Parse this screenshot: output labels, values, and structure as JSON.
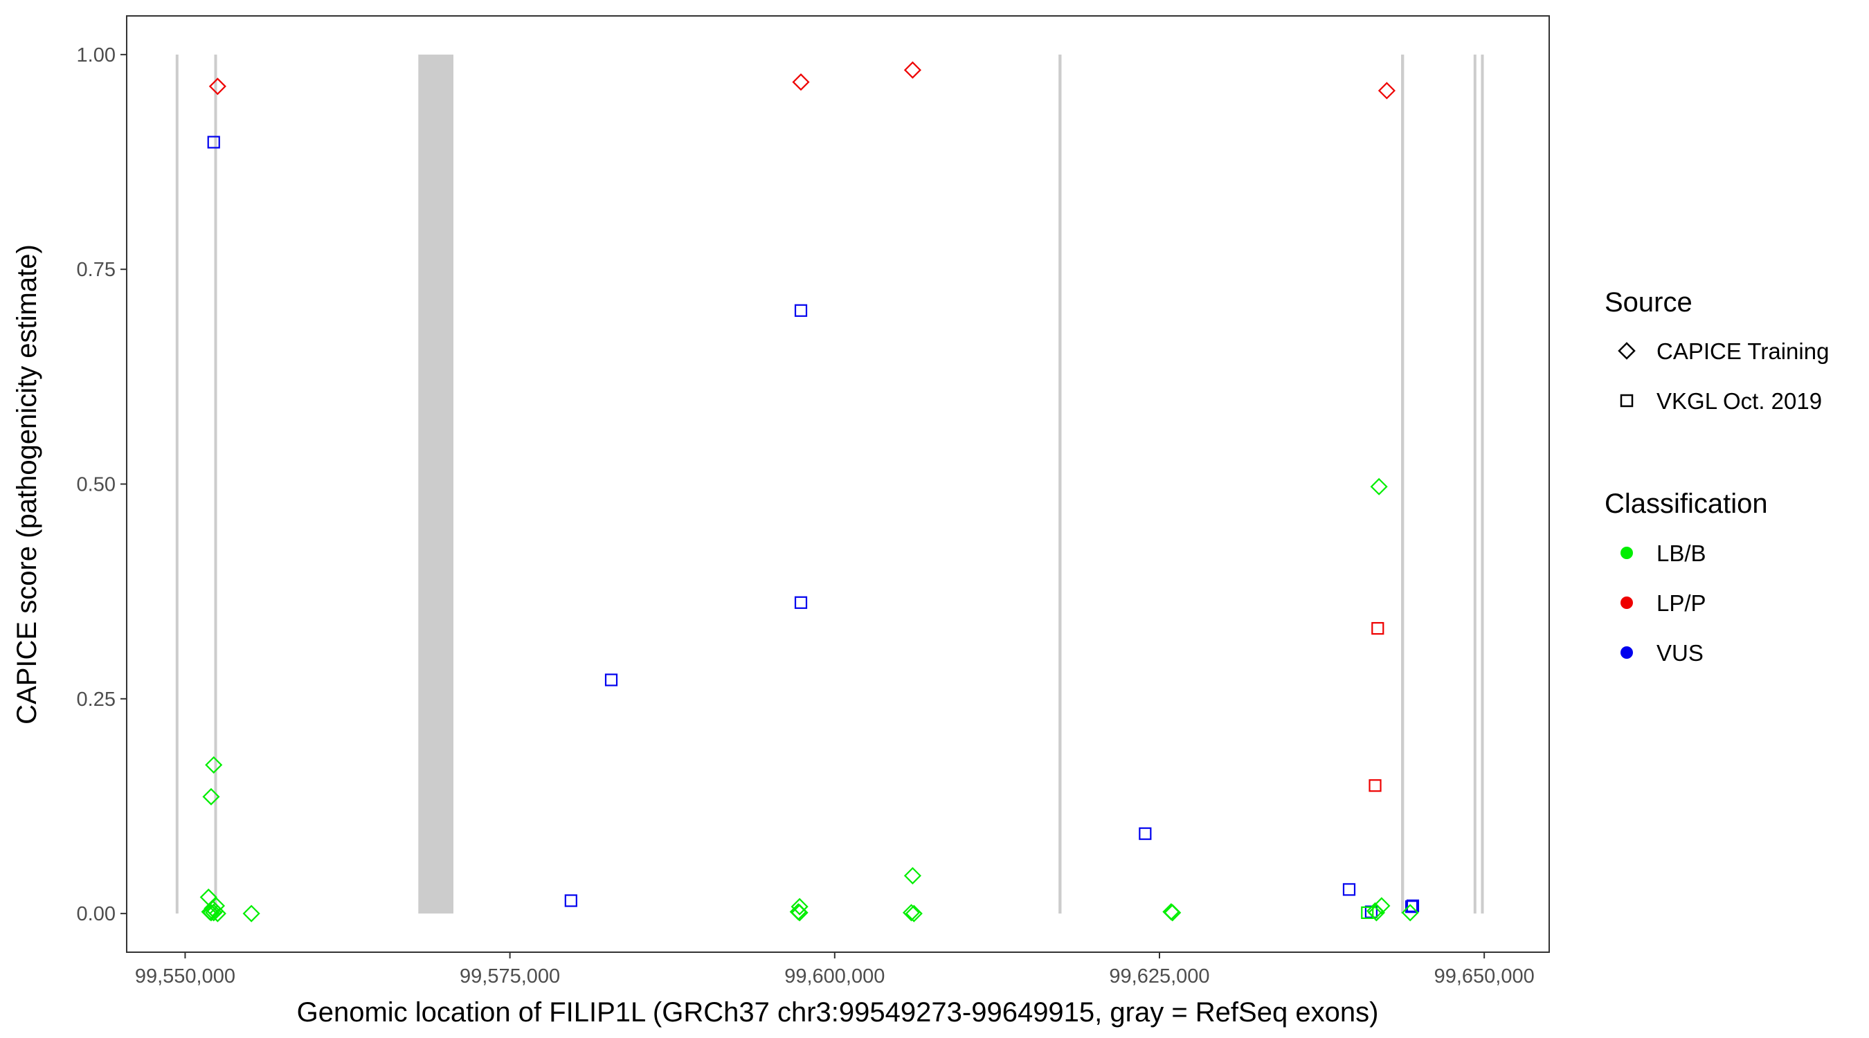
{
  "chart_data": {
    "type": "scatter",
    "xlabel": "Genomic location of FILIP1L (GRCh37 chr3:99549273-99649915, gray = RefSeq exons)",
    "ylabel": "CAPICE score (pathogenicity estimate)",
    "xlim": [
      99545500,
      99655000
    ],
    "ylim": [
      -0.045,
      1.045
    ],
    "x_ticks": [
      99550000,
      99575000,
      99600000,
      99625000,
      99650000
    ],
    "x_tick_labels": [
      "99,550,000",
      "99,575,000",
      "99,600,000",
      "99,625,000",
      "99,650,000"
    ],
    "y_ticks": [
      0,
      0.25,
      0.5,
      0.75,
      1
    ],
    "y_tick_labels": [
      "0.00",
      "0.25",
      "0.50",
      "0.75",
      "1.00"
    ],
    "grid": false,
    "legend_position": "right",
    "exons": [
      [
        99549273,
        99549480
      ],
      [
        99552240,
        99552310
      ],
      [
        99567950,
        99570650
      ],
      [
        99617230,
        99617460
      ],
      [
        99643600,
        99643830
      ],
      [
        99649180,
        99649370
      ],
      [
        99649750,
        99649915
      ]
    ],
    "legend": {
      "source_title": "Source",
      "source_items": [
        {
          "label": "CAPICE Training",
          "shape": "diamond"
        },
        {
          "label": "VKGL Oct. 2019",
          "shape": "square"
        }
      ],
      "class_title": "Classification",
      "class_items": [
        {
          "label": "LB/B",
          "color": "#00ee00"
        },
        {
          "label": "LP/P",
          "color": "#ee0000"
        },
        {
          "label": "VUS",
          "color": "#0000ee"
        }
      ]
    },
    "series": [
      {
        "source": "CAPICE Training",
        "classification": "LP/P",
        "points": [
          [
            99552500,
            0.963
          ],
          [
            99597400,
            0.968
          ],
          [
            99606000,
            0.982
          ],
          [
            99642500,
            0.958
          ]
        ]
      },
      {
        "source": "VKGL Oct. 2019",
        "classification": "VUS",
        "points": [
          [
            99552200,
            0.898
          ],
          [
            99597400,
            0.702
          ],
          [
            99597400,
            0.362
          ],
          [
            99582800,
            0.272
          ],
          [
            99579700,
            0.015
          ],
          [
            99623900,
            0.093
          ],
          [
            99639600,
            0.028
          ],
          [
            99641300,
            0.002
          ],
          [
            99644400,
            0.008
          ],
          [
            99644500,
            0.009
          ]
        ]
      },
      {
        "source": "VKGL Oct. 2019",
        "classification": "LP/P",
        "points": [
          [
            99641800,
            0.332
          ],
          [
            99641600,
            0.149
          ]
        ]
      },
      {
        "source": "VKGL Oct. 2019",
        "classification": "LB/B",
        "points": [
          [
            99641000,
            0.001
          ]
        ]
      },
      {
        "source": "CAPICE Training",
        "classification": "LB/B",
        "points": [
          [
            99552200,
            0.173
          ],
          [
            99552000,
            0.136
          ],
          [
            99551800,
            0.019
          ],
          [
            99552400,
            0.009
          ],
          [
            99552100,
            0.006
          ],
          [
            99552300,
            0.003
          ],
          [
            99551900,
            0.002
          ],
          [
            99552000,
            0.001
          ],
          [
            99552200,
            0.001
          ],
          [
            99552500,
            0.0
          ],
          [
            99555100,
            0.0
          ],
          [
            99597300,
            0.008
          ],
          [
            99597200,
            0.002
          ],
          [
            99597300,
            0.001
          ],
          [
            99606000,
            0.044
          ],
          [
            99605900,
            0.001
          ],
          [
            99606100,
            0.0
          ],
          [
            99625900,
            0.002
          ],
          [
            99626000,
            0.001
          ],
          [
            99641900,
            0.497
          ],
          [
            99642100,
            0.009
          ],
          [
            99641600,
            0.003
          ],
          [
            99641700,
            0.001
          ],
          [
            99644300,
            0.001
          ]
        ]
      }
    ]
  }
}
